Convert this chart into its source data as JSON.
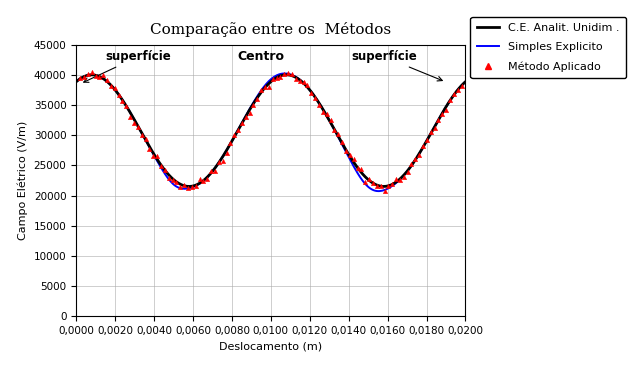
{
  "title": "Comparação entre os  Métodos",
  "xlabel": "Deslocamento (m)",
  "ylabel": "Campo Elétrico (V/m)",
  "xlim": [
    0.0,
    0.02
  ],
  "ylim": [
    0,
    45000
  ],
  "yticks": [
    0,
    5000,
    10000,
    15000,
    20000,
    25000,
    30000,
    35000,
    40000,
    45000
  ],
  "xticks": [
    0.0,
    0.002,
    0.004,
    0.006,
    0.008,
    0.01,
    0.012,
    0.014,
    0.016,
    0.018,
    0.02
  ],
  "x_tick_labels": [
    "0,0000",
    "0,0020",
    "0,0040",
    "0,0060",
    "0,0080",
    "0,0100",
    "0,0120",
    "0,0140",
    "0,0160",
    "0,0180",
    "0,0200"
  ],
  "y_tick_labels": [
    "0",
    "5000",
    "10000",
    "15000",
    "20000",
    "25000",
    "30000",
    "35000",
    "40000",
    "45000"
  ],
  "wave_mean": 30750,
  "wave_amp": 9250,
  "wave_period": 0.01,
  "wave_phase": 0.0008,
  "n_points": 300,
  "n_scatter": 100,
  "analytic_color": "#000000",
  "explicit_color": "#0000ff",
  "applied_color": "#ff0000",
  "analytic_lw": 2.0,
  "explicit_lw": 1.4,
  "legend_labels": [
    "C.E. Analit. Unidim .",
    "Simples Explicito",
    "Método Aplicado"
  ],
  "background_color": "#ffffff",
  "grid_color": "#aaaaaa",
  "title_fontsize": 11,
  "axis_fontsize": 8,
  "tick_fontsize": 7.5,
  "legend_fontsize": 8
}
